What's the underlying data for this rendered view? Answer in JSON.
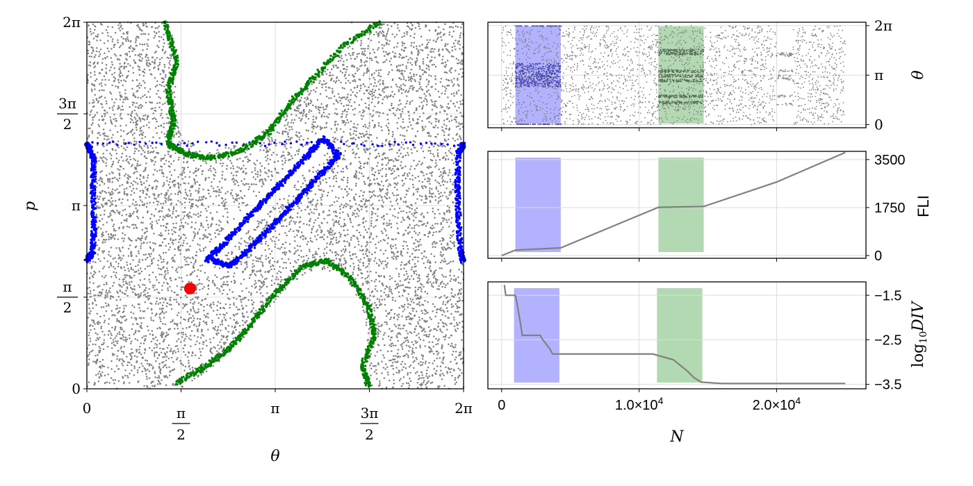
{
  "chart_data": [
    {
      "type": "scatter",
      "title": "",
      "xlabel": "θ",
      "ylabel": "p",
      "xlim": [
        0,
        6.2832
      ],
      "ylim": [
        0,
        6.2832
      ],
      "grid": true,
      "x_ticks": [
        {
          "value": 0,
          "label": "0"
        },
        {
          "value": 1.5708,
          "num": "π",
          "den": "2"
        },
        {
          "value": 3.1416,
          "label": "π"
        },
        {
          "value": 4.7124,
          "num": "3π",
          "den": "2"
        },
        {
          "value": 6.2832,
          "label": "2π"
        }
      ],
      "y_ticks": [
        {
          "value": 0,
          "label": "0"
        },
        {
          "value": 1.5708,
          "num": "π",
          "den": "2"
        },
        {
          "value": 3.1416,
          "label": "π"
        },
        {
          "value": 4.7124,
          "num": "3π",
          "den": "2"
        },
        {
          "value": 6.2832,
          "label": "2π"
        }
      ],
      "series": [
        {
          "role": "chaotic sea",
          "color": "#808080"
        },
        {
          "role": "central island",
          "color": "#0000ff",
          "points": [
            [
              1.99,
              2.18
            ],
            [
              2.2,
              2.4
            ],
            [
              2.5,
              2.72
            ],
            [
              2.8,
              3.05
            ],
            [
              3.1,
              3.37
            ],
            [
              3.4,
              3.7
            ],
            [
              3.7,
              4.02
            ],
            [
              3.95,
              4.3
            ],
            [
              4.2,
              4.0
            ],
            [
              3.9,
              3.68
            ],
            [
              3.6,
              3.34
            ],
            [
              3.3,
              3.02
            ],
            [
              3.0,
              2.7
            ],
            [
              2.7,
              2.38
            ],
            [
              2.4,
              2.1
            ],
            [
              2.1,
              2.2
            ]
          ]
        },
        {
          "role": "edge island",
          "color": "#0000ff",
          "points": [
            [
              0.0,
              2.2
            ],
            [
              0.1,
              2.35
            ],
            [
              0.12,
              2.8
            ],
            [
              0.1,
              3.4
            ],
            [
              0.12,
              3.9
            ],
            [
              0.05,
              4.1
            ],
            [
              0.0,
              4.2
            ],
            [
              6.28,
              4.2
            ],
            [
              6.2,
              4.05
            ],
            [
              6.18,
              3.5
            ],
            [
              6.2,
              2.9
            ],
            [
              6.23,
              2.35
            ],
            [
              6.28,
              2.2
            ]
          ]
        },
        {
          "role": "upper green chain",
          "color": "#008000",
          "points": [
            [
              1.3,
              6.28
            ],
            [
              1.5,
              5.6
            ],
            [
              1.35,
              5.1
            ],
            [
              1.45,
              4.6
            ],
            [
              1.35,
              4.2
            ],
            [
              1.6,
              4.05
            ],
            [
              2.0,
              3.95
            ],
            [
              2.5,
              4.05
            ],
            [
              3.0,
              4.35
            ],
            [
              3.4,
              4.9
            ],
            [
              3.8,
              5.35
            ],
            [
              4.3,
              5.9
            ],
            [
              4.9,
              6.28
            ]
          ]
        },
        {
          "role": "lower green chain",
          "color": "#008000",
          "points": [
            [
              1.5,
              0.1
            ],
            [
              2.0,
              0.4
            ],
            [
              2.4,
              0.7
            ],
            [
              2.8,
              1.2
            ],
            [
              3.2,
              1.7
            ],
            [
              3.6,
              2.1
            ],
            [
              4.0,
              2.2
            ],
            [
              4.4,
              1.9
            ],
            [
              4.7,
              1.4
            ],
            [
              4.8,
              0.9
            ],
            [
              4.6,
              0.4
            ],
            [
              4.7,
              0.05
            ]
          ]
        },
        {
          "role": "initial condition",
          "color": "#ff0000",
          "points": [
            [
              1.72,
              1.72
            ]
          ]
        }
      ]
    },
    {
      "type": "scatter",
      "ylabel": "θ",
      "xlim": [
        -1000,
        26500
      ],
      "ylim": [
        -0.2,
        6.5
      ],
      "grid": true,
      "y_ticks": [
        {
          "value": 0,
          "label": "0"
        },
        {
          "value": 3.1416,
          "label": "π"
        },
        {
          "value": 6.2832,
          "label": "2π"
        }
      ],
      "bands": [
        {
          "from": 1000,
          "to": 4300,
          "color": "#0000ff",
          "opacity": 0.3
        },
        {
          "from": 11400,
          "to": 14700,
          "color": "#008000",
          "opacity": 0.3
        }
      ],
      "series": [
        {
          "color": "#808080"
        }
      ]
    },
    {
      "type": "line",
      "ylabel": "FLI",
      "xlim": [
        -1000,
        26500
      ],
      "ylim": [
        -100,
        3800
      ],
      "grid": true,
      "y_ticks": [
        {
          "value": 0,
          "label": "0"
        },
        {
          "value": 1750,
          "label": "1750"
        },
        {
          "value": 3500,
          "label": "3500"
        }
      ],
      "bands": [
        {
          "from": 1000,
          "to": 4300,
          "color": "#0000ff",
          "opacity": 0.3
        },
        {
          "from": 11400,
          "to": 14700,
          "color": "#008000",
          "opacity": 0.3
        }
      ],
      "series": [
        {
          "color": "#808080",
          "x": [
            0,
            1000,
            4300,
            11400,
            14700,
            20000,
            25000
          ],
          "y": [
            0,
            200,
            280,
            1760,
            1790,
            2680,
            3760
          ]
        }
      ]
    },
    {
      "type": "line",
      "ylabel": "log10 DIV",
      "ylabel_main": "log",
      "ylabel_sub": "10",
      "ylabel_tail": "DIV",
      "xlabel": "N",
      "xlim": [
        -1000,
        26500
      ],
      "ylim": [
        -3.6,
        -1.2
      ],
      "grid": true,
      "x_ticks": [
        {
          "value": 0,
          "label": "0"
        },
        {
          "value": 10000,
          "label": "1.0×10",
          "exp": "4"
        },
        {
          "value": 20000,
          "label": "2.0×10",
          "exp": "4"
        }
      ],
      "y_ticks": [
        {
          "value": -1.5,
          "label": "−1.5"
        },
        {
          "value": -2.5,
          "label": "−2.5"
        },
        {
          "value": -3.5,
          "label": "−3.5"
        }
      ],
      "bands": [
        {
          "from": 900,
          "to": 4200,
          "color": "#0000ff",
          "opacity": 0.3
        },
        {
          "from": 11300,
          "to": 14600,
          "color": "#008000",
          "opacity": 0.3
        }
      ],
      "series": [
        {
          "color": "#808080",
          "x": [
            200,
            300,
            1000,
            1100,
            1300,
            1500,
            2800,
            3000,
            3500,
            3700,
            11000,
            12500,
            13500,
            14000,
            14500,
            16000,
            20000,
            25000
          ],
          "y": [
            -1.27,
            -1.5,
            -1.5,
            -1.65,
            -2.0,
            -2.4,
            -2.4,
            -2.5,
            -2.7,
            -2.82,
            -2.82,
            -2.95,
            -3.2,
            -3.35,
            -3.45,
            -3.48,
            -3.48,
            -3.48
          ]
        }
      ]
    }
  ]
}
